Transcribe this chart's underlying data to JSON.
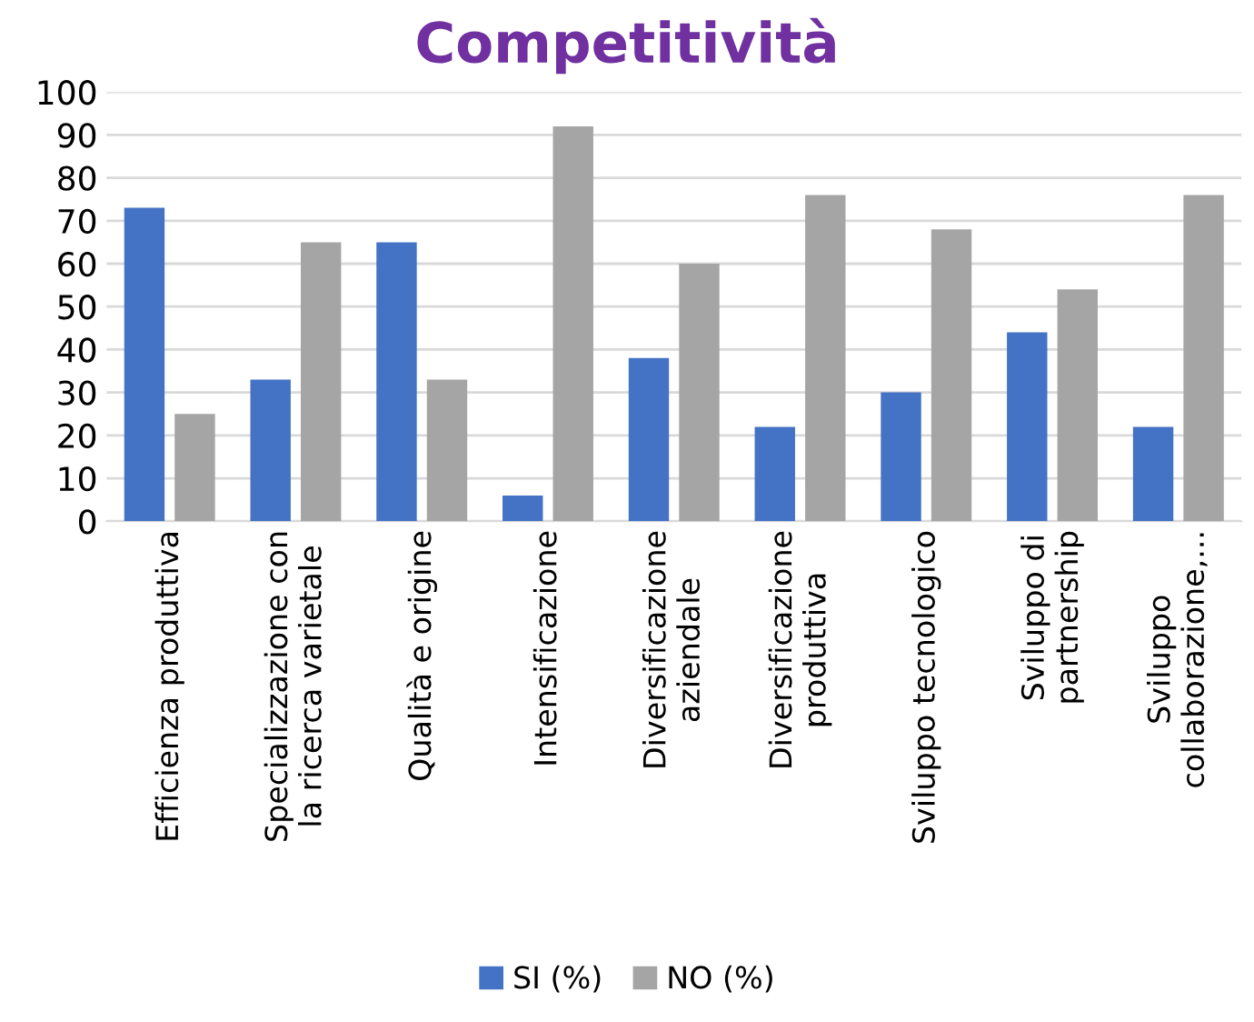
{
  "chart_data": {
    "type": "bar",
    "title": "Competitività",
    "categories": [
      "Efficienza produttiva",
      "Specializzazione con\nla ricerca varietale",
      "Qualità e origine",
      "Intensificazione",
      "Diversificazione\naziendale",
      "Diversificazione\nproduttiva",
      "Sviluppo tecnologico",
      "Sviluppo di\npartnership",
      "Sviluppo\ncollaborazione,..."
    ],
    "series": [
      {
        "name": "SI (%)",
        "color": "#4472c4",
        "values": [
          73,
          33,
          65,
          6,
          38,
          22,
          30,
          44,
          22
        ]
      },
      {
        "name": "NO (%)",
        "color": "#a5a5a5",
        "values": [
          25,
          65,
          33,
          92,
          60,
          76,
          68,
          54,
          76
        ]
      }
    ],
    "ylim": [
      0,
      100
    ],
    "yticks": [
      0,
      10,
      20,
      30,
      40,
      50,
      60,
      70,
      80,
      90,
      100
    ],
    "grid": "y",
    "legend": "bottom"
  }
}
